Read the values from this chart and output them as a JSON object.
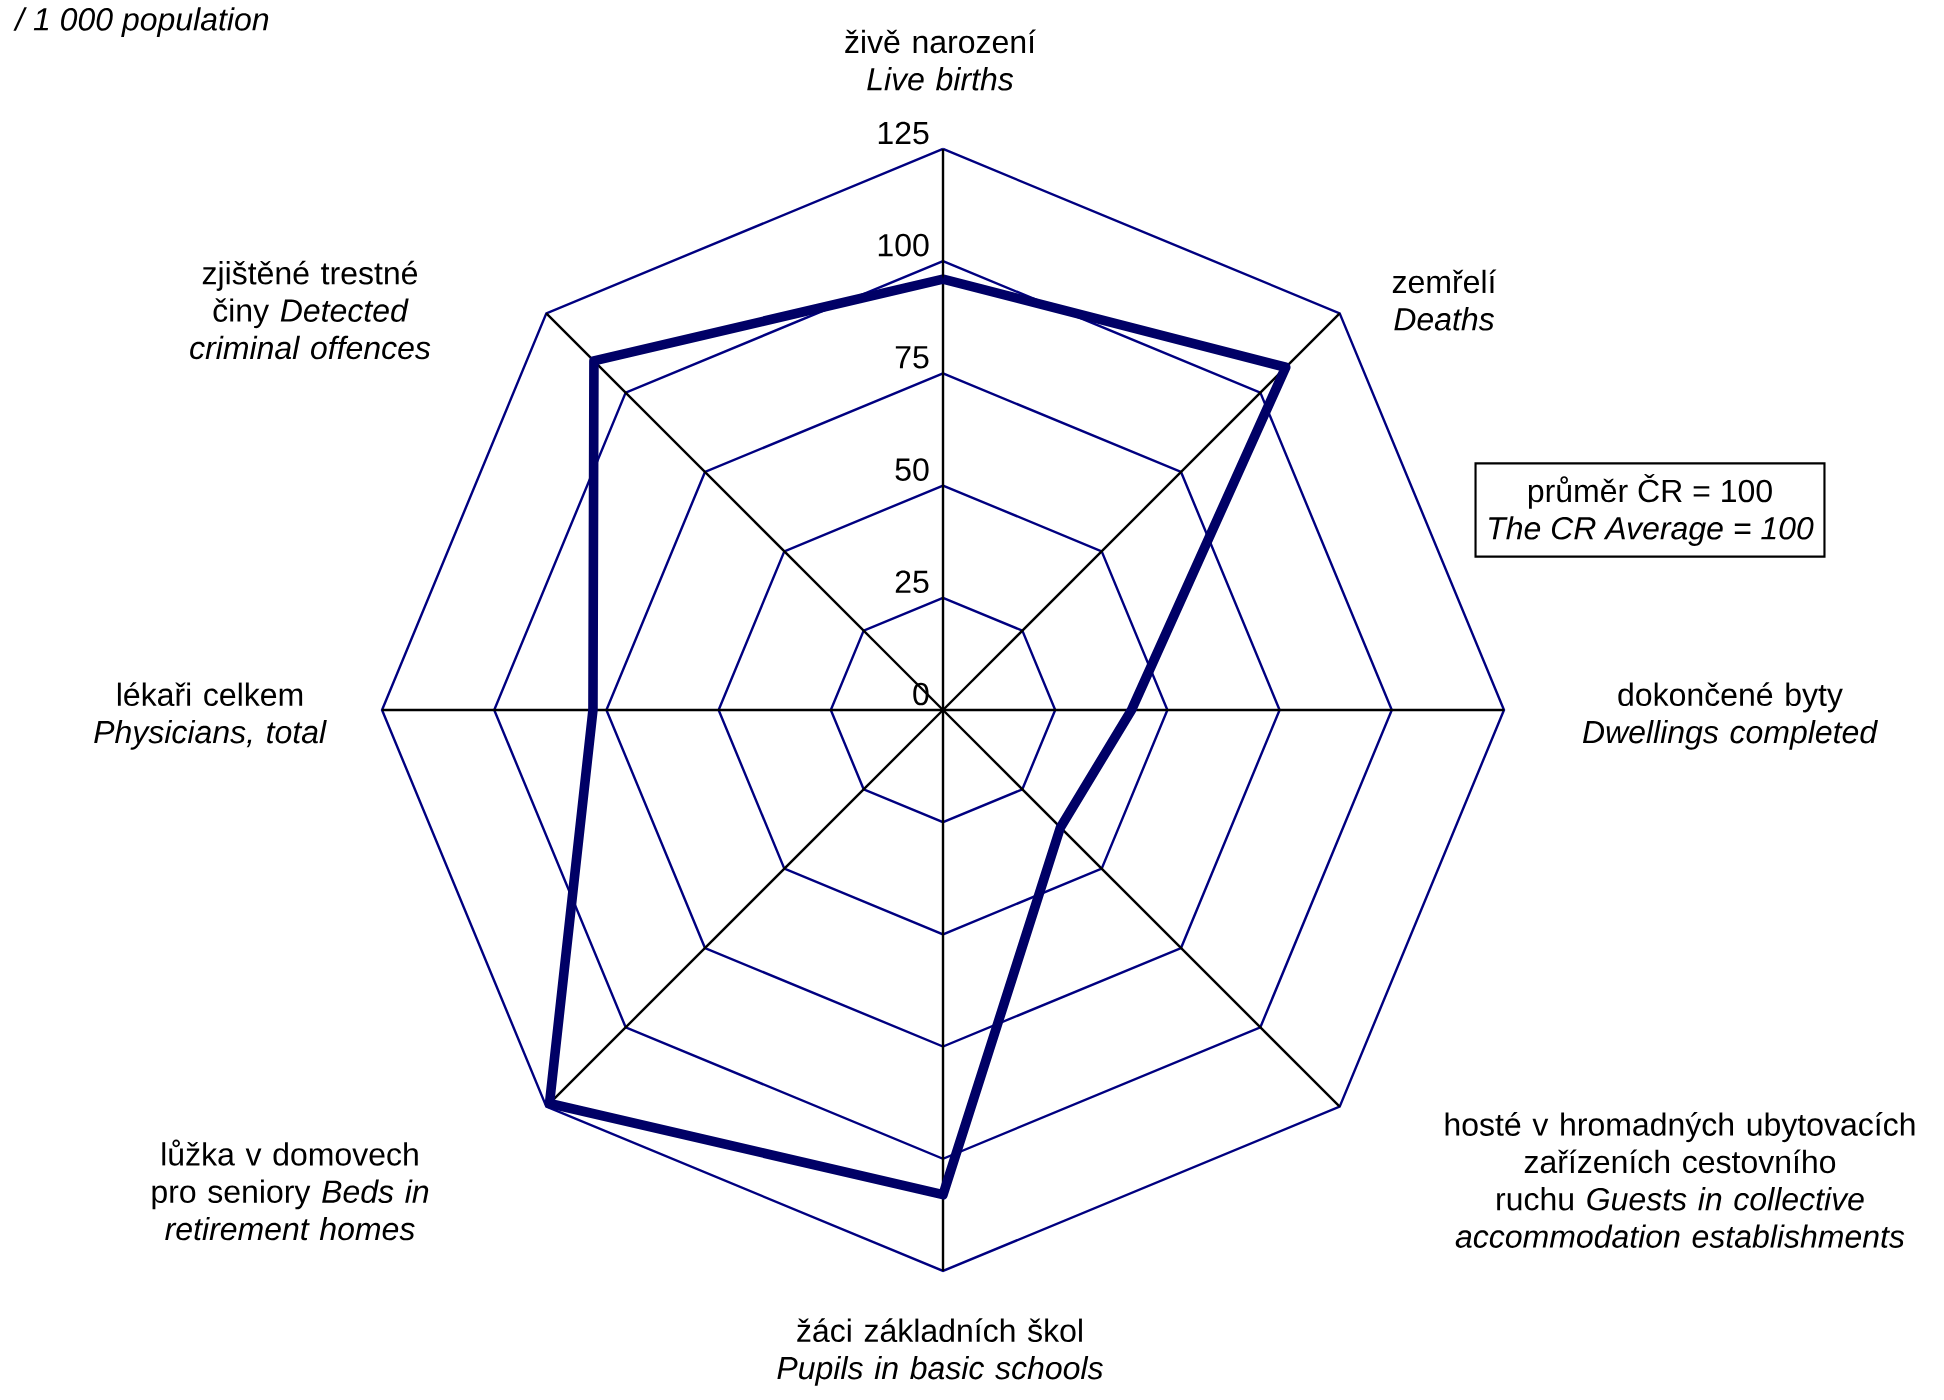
{
  "chart_data": {
    "type": "radar",
    "title": "/ 1 000 population",
    "categories": [
      "živě narození *Live births*",
      "zemřelí *Deaths*",
      "dokončené byty *Dwellings completed*",
      "hosté v hromadných ubytovacích zařízeních cestovního ruchu *Guests in collective accommodation establishments*",
      "žáci základních škol *Pupils in basic schools*",
      "lůžka v domovech pro seniory *Beds in retirement homes*",
      "lékaři celkem *Physicians, total*",
      "zjištěné trestné činy *Detected criminal offences*"
    ],
    "series": [
      {
        "color": "#000066",
        "values": [
          96,
          108,
          42,
          37,
          108,
          124,
          78,
          110
        ]
      }
    ],
    "ylim": [
      0,
      125
    ],
    "yticks": [
      0,
      25,
      50,
      75,
      100,
      125
    ],
    "grid": true,
    "annotations": [
      "průměr ČR = 100",
      "The CR Average = 100"
    ]
  }
}
